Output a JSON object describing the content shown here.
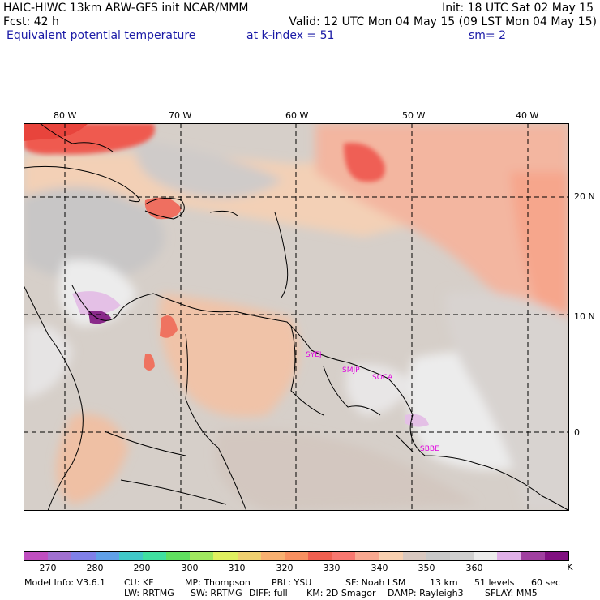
{
  "header": {
    "line1_left": "HAIC-HIWC 13km ARW-GFS init   NCAR/MMM",
    "line1_right": "Init: 18 UTC Sat 02 May 15",
    "line2_left": "Fcst:    42 h",
    "line2_right": "Valid: 12 UTC Mon 04 May 15 (09 LST Mon 04 May 15)",
    "line3_left": "Equivalent potential temperature",
    "line3_mid": "at k-index =  51",
    "line3_right": "sm= 2"
  },
  "map": {
    "lon_labels": [
      "80 W",
      "70 W",
      "60 W",
      "50 W",
      "40 W"
    ],
    "lat_labels": [
      "20 N",
      "10 N",
      "0"
    ],
    "stations": [
      "SYEJ",
      "SMJP",
      "SOCA",
      "SBBE"
    ]
  },
  "colorbar": {
    "colors": [
      "#c04fc0",
      "#a070d0",
      "#8080e8",
      "#60a0e8",
      "#40c8c8",
      "#40e0a0",
      "#60e060",
      "#a0e860",
      "#e0f060",
      "#f0d070",
      "#f8b070",
      "#f89060",
      "#f06050",
      "#f87870",
      "#f8a890",
      "#f8d0b0",
      "#d8c8c0",
      "#c8c8c8",
      "#d0d0d0",
      "#ececec",
      "#e0b0e8",
      "#a040a0",
      "#801080"
    ],
    "labels": [
      "270",
      "280",
      "290",
      "300",
      "310",
      "320",
      "330",
      "340",
      "350",
      "360"
    ],
    "unit": "K"
  },
  "footer": {
    "line1": [
      "Model Info: V3.6.1",
      "CU: KF",
      "MP: Thompson",
      "PBL: YSU",
      "SF: Noah LSM",
      "13 km",
      "51 levels",
      "60 sec"
    ],
    "line2": [
      "LW: RRTMG",
      "SW: RRTMG",
      "DIFF: full",
      "KM: 2D Smagor",
      "DAMP: Rayleigh3",
      "SFLAY: MM5"
    ]
  }
}
